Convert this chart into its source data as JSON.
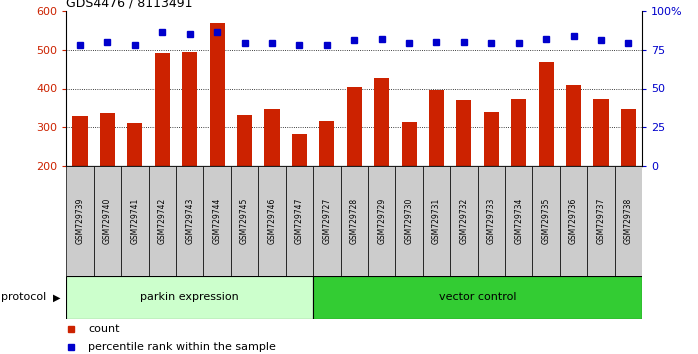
{
  "title": "GDS4476 / 8113491",
  "samples": [
    "GSM729739",
    "GSM729740",
    "GSM729741",
    "GSM729742",
    "GSM729743",
    "GSM729744",
    "GSM729745",
    "GSM729746",
    "GSM729747",
    "GSM729727",
    "GSM729728",
    "GSM729729",
    "GSM729730",
    "GSM729731",
    "GSM729732",
    "GSM729733",
    "GSM729734",
    "GSM729735",
    "GSM729736",
    "GSM729737",
    "GSM729738"
  ],
  "counts": [
    330,
    337,
    312,
    492,
    494,
    568,
    332,
    347,
    282,
    317,
    405,
    428,
    314,
    397,
    370,
    340,
    373,
    469,
    410,
    372,
    348
  ],
  "percentiles": [
    78,
    80,
    78,
    86,
    85,
    86,
    79,
    79,
    78,
    78,
    81,
    82,
    79,
    80,
    80,
    79,
    79,
    82,
    84,
    81,
    79
  ],
  "parkin_count": 9,
  "vector_count": 12,
  "bar_color": "#cc2200",
  "dot_color": "#0000cc",
  "parkin_color": "#ccffcc",
  "vector_color": "#33cc33",
  "label_bg_color": "#cccccc",
  "ylim_left": [
    200,
    600
  ],
  "ylim_right": [
    0,
    100
  ],
  "yticks_left": [
    200,
    300,
    400,
    500,
    600
  ],
  "yticks_right": [
    0,
    25,
    50,
    75,
    100
  ],
  "right_ytick_labels": [
    "0",
    "25",
    "50",
    "75",
    "100%"
  ],
  "grid_values": [
    300,
    400,
    500
  ]
}
